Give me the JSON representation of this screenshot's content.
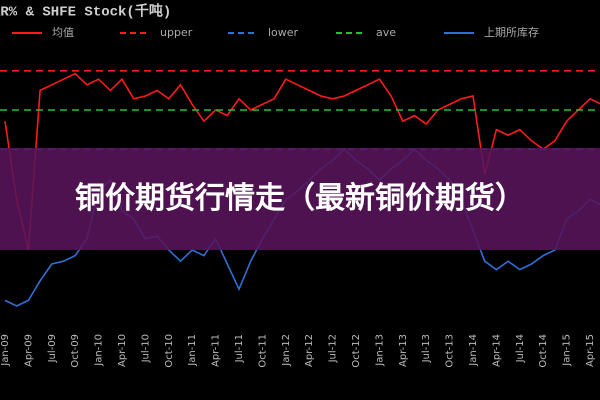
{
  "chart_data": {
    "type": "line",
    "title": "AR% & SHFE Stock(千吨)",
    "categories": [
      "Jan-09",
      null,
      "Apr-09",
      null,
      "Jul-09",
      null,
      "Oct-09",
      null,
      "Jan-10",
      null,
      "Apr-10",
      null,
      "Jul-10",
      null,
      "Oct-10",
      null,
      "Jan-11",
      null,
      "Apr-11",
      null,
      "Jul-11",
      null,
      "Oct-11",
      null,
      "Jan-12",
      null,
      "Apr-12",
      null,
      "Jul-12",
      null,
      "Oct-12",
      null,
      "Jan-13",
      null,
      "Apr-13",
      null,
      "Jul-13",
      null,
      "Oct-13",
      null,
      "Jan-14",
      null,
      "Apr-14",
      null,
      "Jul-14",
      null,
      "Oct-14",
      null,
      "Jan-15",
      null,
      "Apr-15",
      null
    ],
    "ylim": [
      0,
      100
    ],
    "series": [
      {
        "name": "均值",
        "color": "#ff1a1a",
        "style": "solid",
        "values": [
          71,
          43,
          25,
          82,
          84,
          86,
          88,
          84,
          86,
          82,
          86,
          79,
          80,
          82,
          79,
          84,
          77,
          71,
          75,
          73,
          79,
          75,
          77,
          79,
          86,
          84,
          82,
          80,
          79,
          80,
          82,
          84,
          86,
          80,
          71,
          73,
          70,
          75,
          77,
          79,
          80,
          52,
          68,
          66,
          68,
          64,
          61,
          64,
          71,
          75,
          79,
          77
        ]
      },
      {
        "name": "upper",
        "color": "#ff1a1a",
        "style": "dashed",
        "value": 89
      },
      {
        "name": "lower",
        "color": "#2f6fd6",
        "style": "dashed",
        "value": 61
      },
      {
        "name": "ave",
        "color": "#22c03a",
        "style": "dashed",
        "value": 75
      },
      {
        "name": "上期所库存",
        "color": "#2f6fd6",
        "style": "solid",
        "values": [
          7,
          5,
          7,
          14,
          20,
          21,
          23,
          29,
          46,
          50,
          39,
          36,
          29,
          30,
          25,
          21,
          25,
          23,
          29,
          20,
          11,
          21,
          29,
          36,
          43,
          46,
          50,
          54,
          57,
          61,
          57,
          54,
          50,
          54,
          57,
          61,
          57,
          54,
          50,
          43,
          32,
          21,
          18,
          21,
          18,
          20,
          23,
          25,
          36,
          39,
          43,
          41
        ]
      }
    ]
  },
  "banner": {
    "text": "铜价期货行情走（最新铜价期货）"
  }
}
